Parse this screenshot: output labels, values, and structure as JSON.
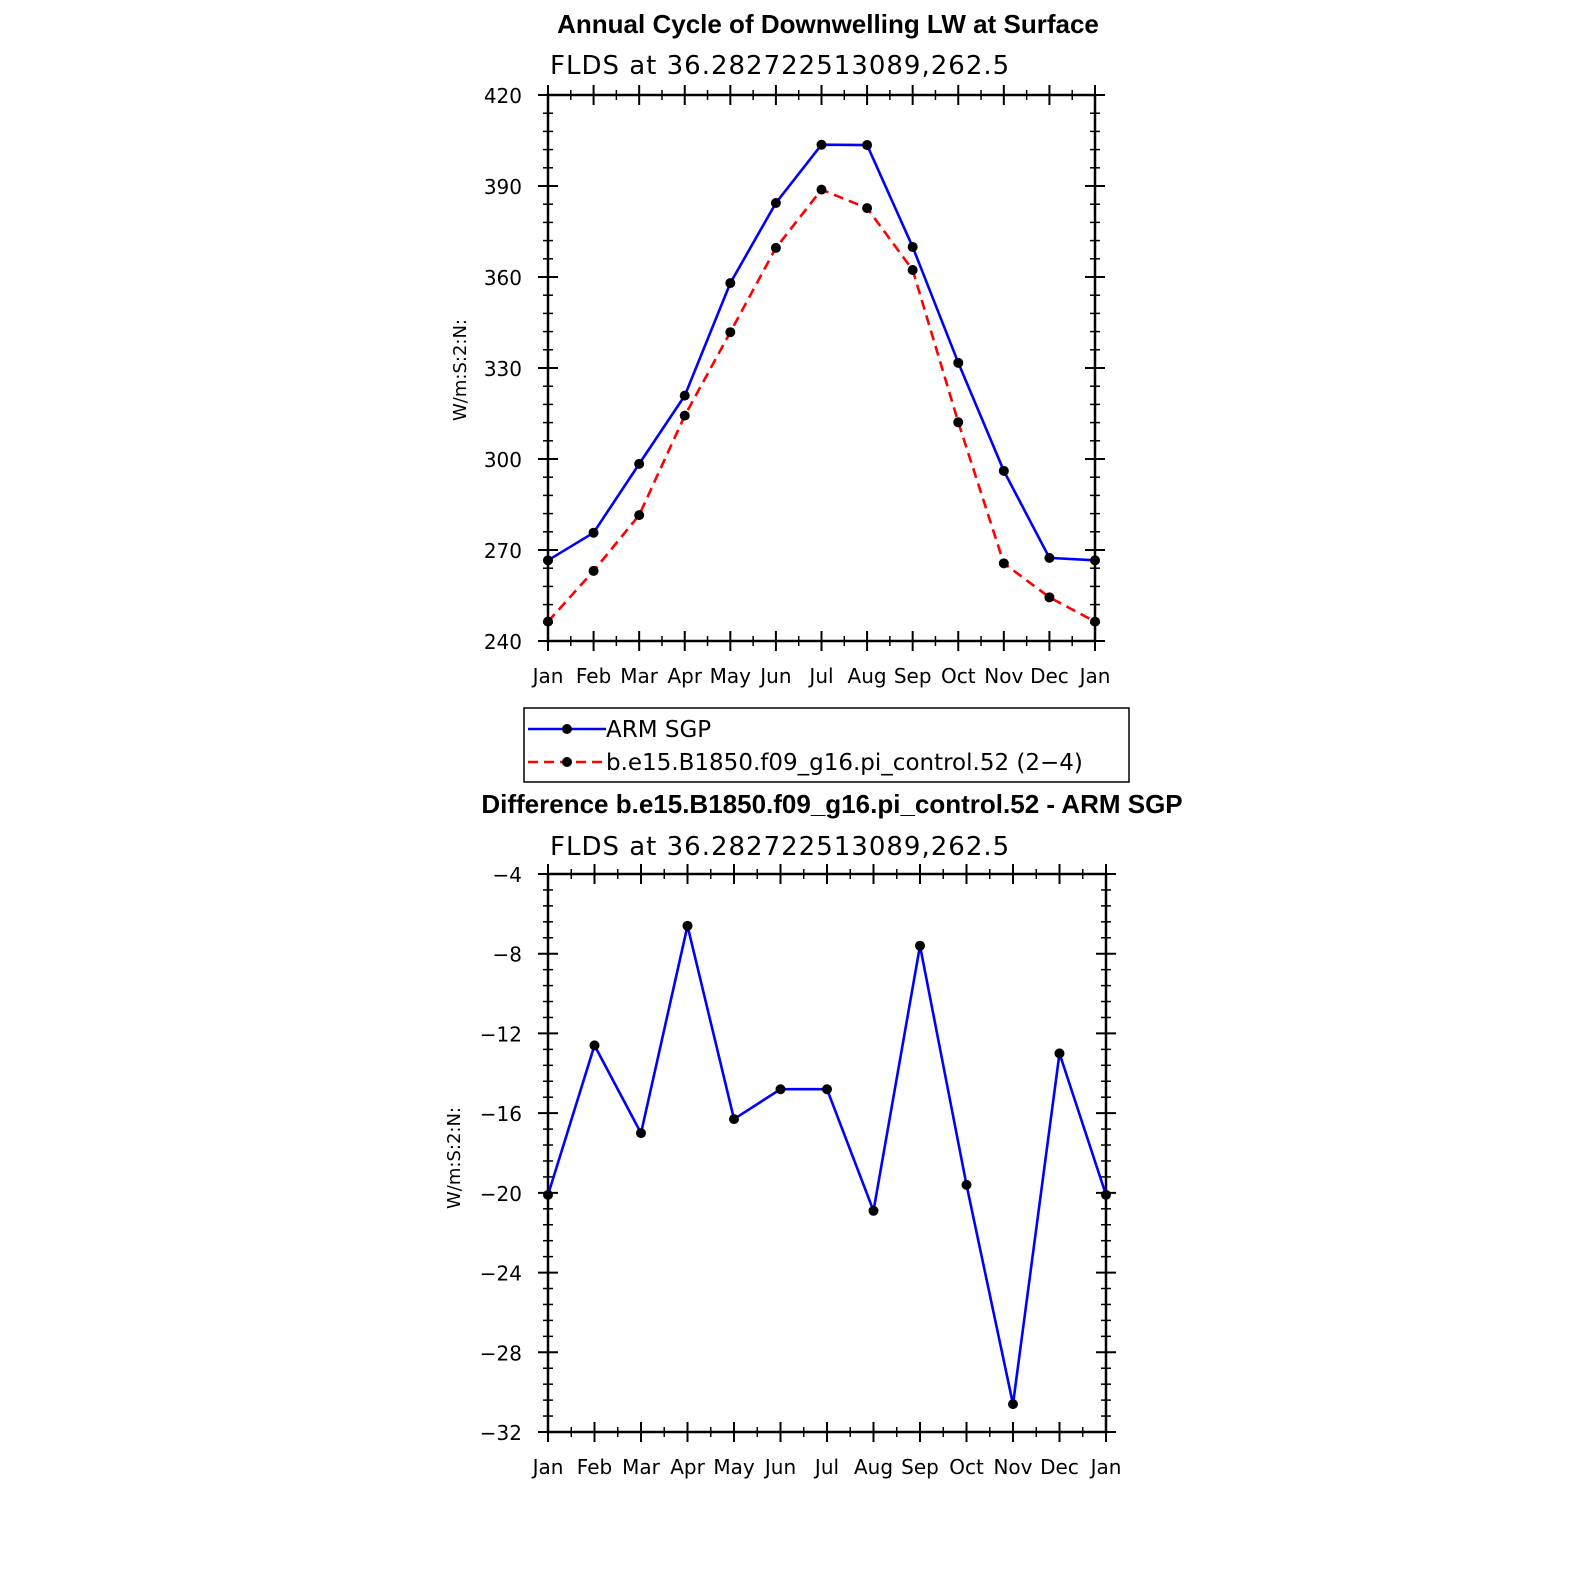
{
  "chart_data": [
    {
      "type": "line",
      "title": "Annual Cycle of Downwelling LW at Surface",
      "subtitle": "FLDS at 36.282722513089,262.5",
      "ylabel": "W/m:S:2:N:",
      "xlabel": "",
      "categories": [
        "Jan",
        "Feb",
        "Mar",
        "Apr",
        "May",
        "Jun",
        "Jul",
        "Aug",
        "Sep",
        "Oct",
        "Nov",
        "Dec",
        "Jan"
      ],
      "ylim": [
        240,
        420
      ],
      "yticks": [
        240,
        270,
        300,
        330,
        360,
        390,
        420
      ],
      "series": [
        {
          "name": "ARM SGP",
          "color": "#0000ff",
          "dash": "solid",
          "values": [
            266.6,
            275.7,
            298.4,
            320.9,
            358.0,
            384.4,
            403.6,
            403.5,
            369.9,
            331.7,
            296.1,
            267.4,
            266.6
          ]
        },
        {
          "name": "b.e15.B1850.f09_g16.pi_control.52 (2−4)",
          "color": "#ff0000",
          "dash": "dashed",
          "values": [
            246.4,
            263.1,
            281.5,
            314.3,
            341.8,
            369.6,
            388.8,
            382.7,
            362.3,
            312.1,
            265.6,
            254.4,
            246.4
          ]
        }
      ],
      "legend_position": "bottom"
    },
    {
      "type": "line",
      "title": "Difference b.e15.B1850.f09_g16.pi_control.52 - ARM SGP",
      "subtitle": "FLDS at 36.282722513089,262.5",
      "ylabel": "W/m:S:2:N:",
      "xlabel": "",
      "categories": [
        "Jan",
        "Feb",
        "Mar",
        "Apr",
        "May",
        "Jun",
        "Jul",
        "Aug",
        "Sep",
        "Oct",
        "Nov",
        "Dec",
        "Jan"
      ],
      "ylim": [
        -32,
        -4
      ],
      "yticks": [
        -32,
        -28,
        -24,
        -20,
        -16,
        -12,
        -8,
        -4
      ],
      "ytick_labels": [
        "−32",
        "−28",
        "−24",
        "−20",
        "−16",
        "−12",
        "−8",
        "−4"
      ],
      "series": [
        {
          "color": "#0000ff",
          "dash": "solid",
          "values": [
            -20.1,
            -12.6,
            -17.0,
            -6.6,
            -16.3,
            -14.8,
            -14.8,
            -20.9,
            -7.6,
            -19.6,
            -30.6,
            -13.0,
            -20.1
          ]
        }
      ]
    }
  ]
}
